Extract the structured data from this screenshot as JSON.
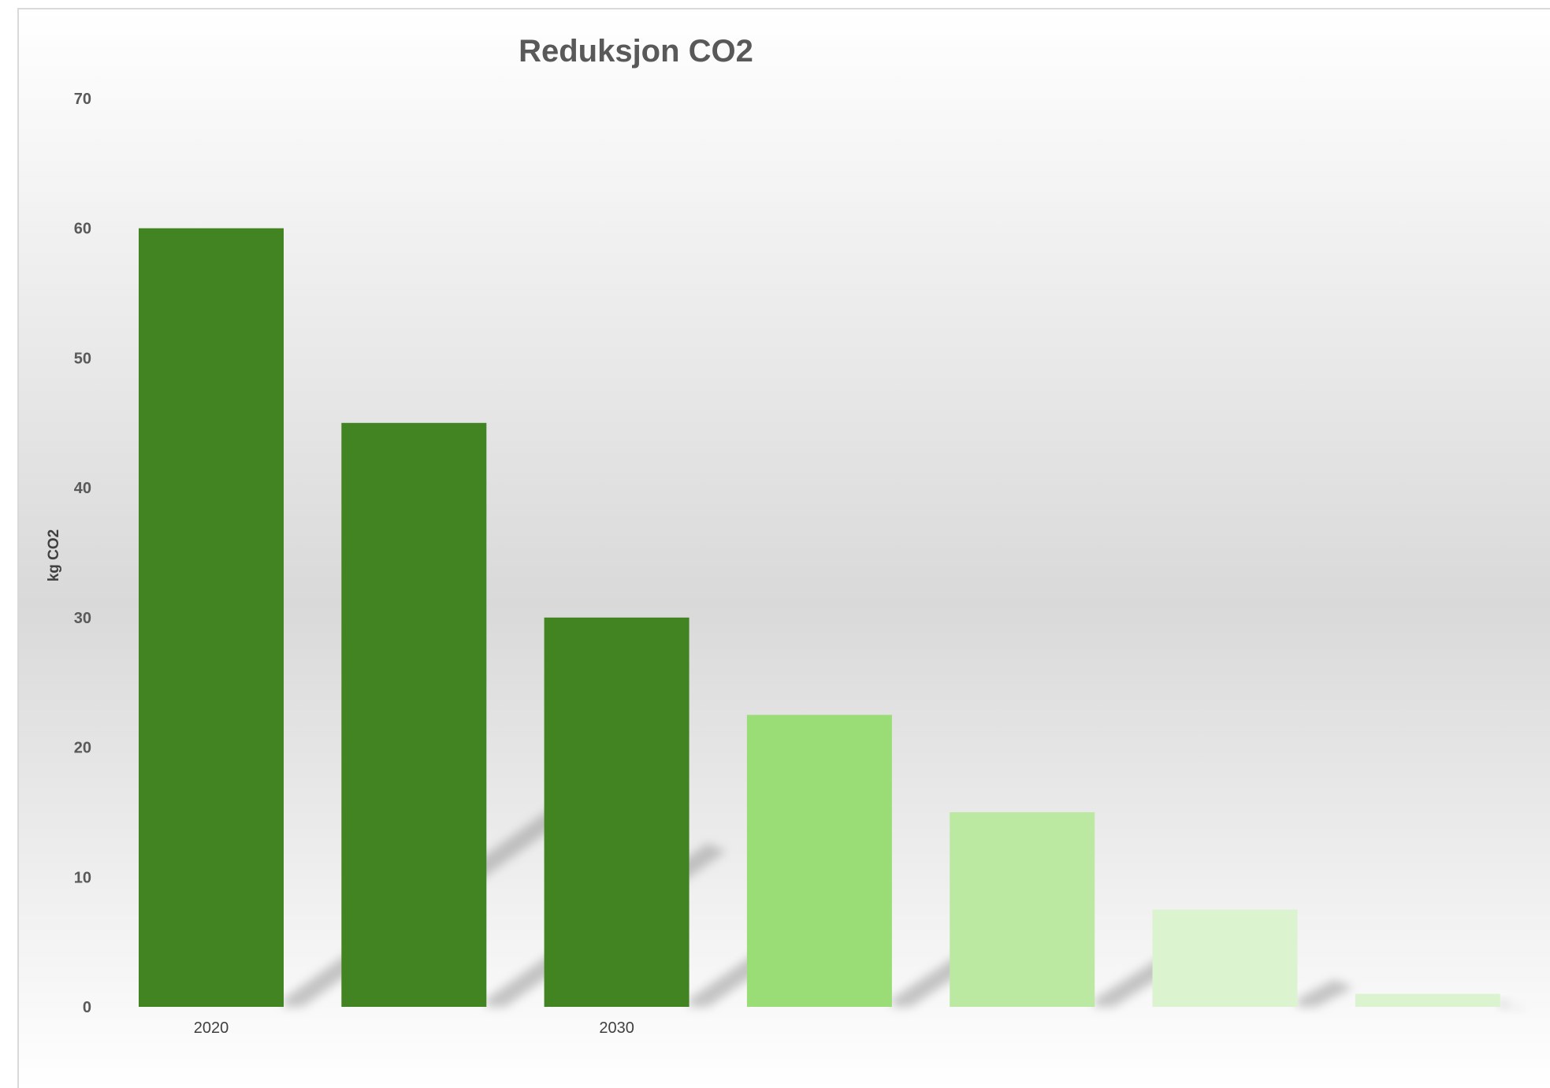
{
  "chart_data": {
    "type": "bar",
    "title": "Reduksjon CO2",
    "xlabel": "",
    "ylabel": "kg CO2",
    "categories": [
      "2020",
      "",
      "2030",
      "",
      "",
      "",
      ""
    ],
    "values": [
      60,
      45,
      30,
      22.5,
      15,
      7.5,
      1
    ],
    "colors": [
      "#438422",
      "#438422",
      "#438422",
      "#9add76",
      "#bbe9a1",
      "#dbf4cf",
      "#dbf4cf"
    ],
    "ylim": [
      0,
      70
    ],
    "yticks": [
      "0",
      "10",
      "20",
      "30",
      "40",
      "50",
      "60",
      "70"
    ],
    "grid": false,
    "legend": "none"
  }
}
